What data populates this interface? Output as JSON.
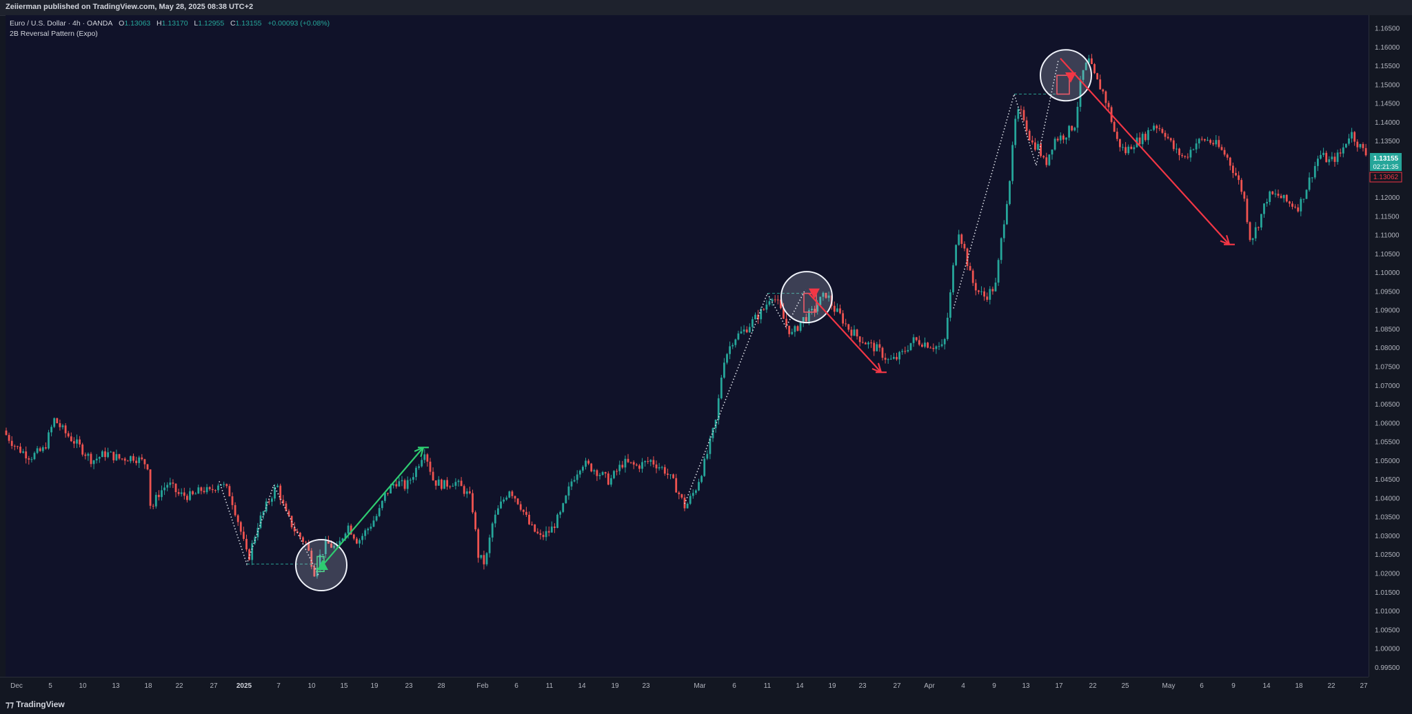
{
  "header": {
    "published": "Zeiierman published on TradingView.com, May 28, 2025 08:38 UTC+2"
  },
  "legend": {
    "symbol": "Euro / U.S. Dollar · 4h · OANDA",
    "o_label": "O",
    "o_val": "1.13063",
    "h_label": "H",
    "h_val": "1.13170",
    "l_label": "L",
    "l_val": "1.12955",
    "c_label": "C",
    "c_val": "1.13155",
    "change": "+0.00093 (+0.08%)",
    "indicator": "2B Reversal Pattern (Expo)"
  },
  "price_tag": {
    "price": "1.13155",
    "countdown": "02:21:35",
    "prev": "1.13062",
    "color_up": "#26a69a",
    "color_down": "#f23645"
  },
  "footer": {
    "brand": "TradingView"
  },
  "chart_data": {
    "type": "candlestick",
    "ylim": [
      0.9925,
      1.1685
    ],
    "yticks": [
      "1.16500",
      "1.16000",
      "1.15500",
      "1.15000",
      "1.14500",
      "1.14000",
      "1.13500",
      "1.13000",
      "1.12500",
      "1.12000",
      "1.11500",
      "1.11000",
      "1.10500",
      "1.10000",
      "1.09500",
      "1.09000",
      "1.08500",
      "1.08000",
      "1.07500",
      "1.07000",
      "1.06500",
      "1.06000",
      "1.05500",
      "1.05000",
      "1.04500",
      "1.04000",
      "1.03500",
      "1.03000",
      "1.02500",
      "1.02000",
      "1.01500",
      "1.01000",
      "1.00500",
      "1.00000",
      "0.99500"
    ],
    "xlim": [
      0,
      1977
    ],
    "xticks": [
      {
        "label": "Dec",
        "x": 16,
        "bold": false
      },
      {
        "label": "5",
        "x": 65,
        "bold": false
      },
      {
        "label": "10",
        "x": 112,
        "bold": false
      },
      {
        "label": "13",
        "x": 160,
        "bold": false
      },
      {
        "label": "18",
        "x": 207,
        "bold": false
      },
      {
        "label": "22",
        "x": 252,
        "bold": false
      },
      {
        "label": "27",
        "x": 302,
        "bold": false
      },
      {
        "label": "2025",
        "x": 346,
        "bold": true
      },
      {
        "label": "7",
        "x": 396,
        "bold": false
      },
      {
        "label": "10",
        "x": 444,
        "bold": false
      },
      {
        "label": "15",
        "x": 491,
        "bold": false
      },
      {
        "label": "19",
        "x": 535,
        "bold": false
      },
      {
        "label": "23",
        "x": 585,
        "bold": false
      },
      {
        "label": "28",
        "x": 632,
        "bold": false
      },
      {
        "label": "Feb",
        "x": 692,
        "bold": false
      },
      {
        "label": "6",
        "x": 741,
        "bold": false
      },
      {
        "label": "11",
        "x": 789,
        "bold": false
      },
      {
        "label": "14",
        "x": 836,
        "bold": false
      },
      {
        "label": "19",
        "x": 884,
        "bold": false
      },
      {
        "label": "23",
        "x": 929,
        "bold": false
      },
      {
        "label": "Mar",
        "x": 1007,
        "bold": false
      },
      {
        "label": "6",
        "x": 1057,
        "bold": false
      },
      {
        "label": "11",
        "x": 1105,
        "bold": false
      },
      {
        "label": "14",
        "x": 1152,
        "bold": false
      },
      {
        "label": "19",
        "x": 1199,
        "bold": false
      },
      {
        "label": "23",
        "x": 1243,
        "bold": false
      },
      {
        "label": "27",
        "x": 1293,
        "bold": false
      },
      {
        "label": "Apr",
        "x": 1340,
        "bold": false
      },
      {
        "label": "4",
        "x": 1389,
        "bold": false
      },
      {
        "label": "9",
        "x": 1434,
        "bold": false
      },
      {
        "label": "13",
        "x": 1480,
        "bold": false
      },
      {
        "label": "17",
        "x": 1528,
        "bold": false
      },
      {
        "label": "22",
        "x": 1577,
        "bold": false
      },
      {
        "label": "25",
        "x": 1624,
        "bold": false
      },
      {
        "label": "May",
        "x": 1687,
        "bold": false
      },
      {
        "label": "6",
        "x": 1735,
        "bold": false
      },
      {
        "label": "9",
        "x": 1781,
        "bold": false
      },
      {
        "label": "14",
        "x": 1829,
        "bold": false
      },
      {
        "label": "18",
        "x": 1876,
        "bold": false
      },
      {
        "label": "22",
        "x": 1923,
        "bold": false
      },
      {
        "label": "27",
        "x": 1970,
        "bold": false
      }
    ],
    "price_path": [
      [
        0,
        1.058
      ],
      [
        20,
        1.0535
      ],
      [
        40,
        1.051
      ],
      [
        60,
        1.053
      ],
      [
        75,
        1.061
      ],
      [
        90,
        1.0575
      ],
      [
        110,
        1.054
      ],
      [
        130,
        1.05
      ],
      [
        150,
        1.052
      ],
      [
        170,
        1.0505
      ],
      [
        190,
        1.051
      ],
      [
        210,
        1.049
      ],
      [
        215,
        1.0365
      ],
      [
        225,
        1.041
      ],
      [
        240,
        1.044
      ],
      [
        255,
        1.041
      ],
      [
        275,
        1.0405
      ],
      [
        290,
        1.0425
      ],
      [
        300,
        1.0415
      ],
      [
        315,
        1.0445
      ],
      [
        330,
        1.041
      ],
      [
        340,
        1.035
      ],
      [
        356,
        1.0235
      ],
      [
        370,
        1.033
      ],
      [
        385,
        1.039
      ],
      [
        398,
        1.0435
      ],
      [
        410,
        1.036
      ],
      [
        425,
        1.031
      ],
      [
        440,
        1.028
      ],
      [
        452,
        1.0205
      ],
      [
        460,
        1.0245
      ],
      [
        470,
        1.028
      ],
      [
        485,
        1.0265
      ],
      [
        500,
        1.033
      ],
      [
        515,
        1.0285
      ],
      [
        530,
        1.032
      ],
      [
        545,
        1.036
      ],
      [
        555,
        1.041
      ],
      [
        570,
        1.0445
      ],
      [
        585,
        1.043
      ],
      [
        600,
        1.048
      ],
      [
        612,
        1.053
      ],
      [
        625,
        1.0445
      ],
      [
        640,
        1.0435
      ],
      [
        655,
        1.0445
      ],
      [
        670,
        1.042
      ],
      [
        680,
        1.0395
      ],
      [
        690,
        1.0245
      ],
      [
        700,
        1.0225
      ],
      [
        710,
        1.033
      ],
      [
        720,
        1.0375
      ],
      [
        735,
        1.0425
      ],
      [
        750,
        1.0385
      ],
      [
        765,
        1.0325
      ],
      [
        780,
        1.0295
      ],
      [
        795,
        1.0315
      ],
      [
        810,
        1.036
      ],
      [
        825,
        1.0445
      ],
      [
        840,
        1.0495
      ],
      [
        860,
        1.0475
      ],
      [
        880,
        1.0445
      ],
      [
        900,
        1.0495
      ],
      [
        920,
        1.0485
      ],
      [
        940,
        1.05
      ],
      [
        960,
        1.0475
      ],
      [
        975,
        1.0435
      ],
      [
        990,
        1.0375
      ],
      [
        1005,
        1.0425
      ],
      [
        1020,
        1.0505
      ],
      [
        1035,
        1.061
      ],
      [
        1045,
        1.0765
      ],
      [
        1060,
        1.0825
      ],
      [
        1075,
        1.0845
      ],
      [
        1090,
        1.0875
      ],
      [
        1105,
        1.0905
      ],
      [
        1115,
        1.0945
      ],
      [
        1125,
        1.0915
      ],
      [
        1135,
        1.0865
      ],
      [
        1145,
        1.0835
      ],
      [
        1160,
        1.0875
      ],
      [
        1175,
        1.0895
      ],
      [
        1185,
        1.0925
      ],
      [
        1195,
        1.0945
      ],
      [
        1205,
        1.0905
      ],
      [
        1215,
        1.0885
      ],
      [
        1225,
        1.0855
      ],
      [
        1240,
        1.083
      ],
      [
        1255,
        1.081
      ],
      [
        1270,
        1.0795
      ],
      [
        1285,
        1.0765
      ],
      [
        1295,
        1.077
      ],
      [
        1305,
        1.0785
      ],
      [
        1320,
        1.082
      ],
      [
        1335,
        1.0815
      ],
      [
        1350,
        1.0805
      ],
      [
        1365,
        1.08
      ],
      [
        1375,
        1.095
      ],
      [
        1385,
        1.1125
      ],
      [
        1395,
        1.106
      ],
      [
        1405,
        1.098
      ],
      [
        1415,
        1.095
      ],
      [
        1425,
        1.0935
      ],
      [
        1440,
        1.0965
      ],
      [
        1450,
        1.111
      ],
      [
        1460,
        1.124
      ],
      [
        1470,
        1.1425
      ],
      [
        1480,
        1.142
      ],
      [
        1492,
        1.1345
      ],
      [
        1502,
        1.1335
      ],
      [
        1512,
        1.1285
      ],
      [
        1525,
        1.1355
      ],
      [
        1540,
        1.1365
      ],
      [
        1555,
        1.1395
      ],
      [
        1565,
        1.1525
      ],
      [
        1575,
        1.1565
      ],
      [
        1585,
        1.1515
      ],
      [
        1595,
        1.1485
      ],
      [
        1605,
        1.143
      ],
      [
        1615,
        1.1355
      ],
      [
        1628,
        1.132
      ],
      [
        1640,
        1.1345
      ],
      [
        1655,
        1.136
      ],
      [
        1670,
        1.1395
      ],
      [
        1685,
        1.1375
      ],
      [
        1700,
        1.1325
      ],
      [
        1715,
        1.1305
      ],
      [
        1730,
        1.1345
      ],
      [
        1745,
        1.1355
      ],
      [
        1760,
        1.134
      ],
      [
        1775,
        1.131
      ],
      [
        1790,
        1.1255
      ],
      [
        1800,
        1.1205
      ],
      [
        1810,
        1.1085
      ],
      [
        1822,
        1.1135
      ],
      [
        1835,
        1.1205
      ],
      [
        1850,
        1.1205
      ],
      [
        1865,
        1.1185
      ],
      [
        1880,
        1.1175
      ],
      [
        1895,
        1.1245
      ],
      [
        1910,
        1.1315
      ],
      [
        1925,
        1.1295
      ],
      [
        1940,
        1.1315
      ],
      [
        1955,
        1.1375
      ],
      [
        1965,
        1.1345
      ],
      [
        1977,
        1.1315
      ]
    ],
    "patterns": [
      {
        "kind": "bullish",
        "zigzag": [
          [
            310,
            1.0445
          ],
          [
            350,
            1.0225
          ],
          [
            389,
            1.0435
          ],
          [
            454,
            1.0195
          ]
        ],
        "level": 1.0225,
        "level_x": [
          350,
          454
        ],
        "box": [
          [
            452,
            1.0205
          ],
          [
            462,
            1.0245
          ]
        ],
        "circle": {
          "x": 458,
          "price": 1.0222
        },
        "marker": {
          "x": 460,
          "price": 1.0222
        },
        "arrow": {
          "from": [
            460,
            1.0222
          ],
          "to": [
            606,
            1.0535
          ]
        }
      },
      {
        "kind": "bearish",
        "zigzag": [
          [
            985,
            1.0385
          ],
          [
            1105,
            1.0945
          ],
          [
            1132,
            1.0855
          ],
          [
            1160,
            1.0955
          ]
        ],
        "level": 1.0945,
        "level_x": [
          1105,
          1160
        ],
        "box": [
          [
            1158,
            1.0945
          ],
          [
            1176,
            1.0895
          ]
        ],
        "circle": {
          "x": 1162,
          "price": 1.0935
        },
        "marker": {
          "x": 1173,
          "price": 1.0945
        },
        "arrow": {
          "from": [
            1165,
            1.0945
          ],
          "to": [
            1270,
            1.0735
          ]
        }
      },
      {
        "kind": "bearish",
        "zigzag": [
          [
            1375,
            1.0905
          ],
          [
            1463,
            1.1475
          ],
          [
            1495,
            1.1285
          ],
          [
            1527,
            1.1565
          ]
        ],
        "level": 1.1475,
        "level_x": [
          1463,
          1527
        ],
        "box": [
          [
            1525,
            1.1525
          ],
          [
            1543,
            1.1475
          ]
        ],
        "circle": {
          "x": 1538,
          "price": 1.1525
        },
        "marker": {
          "x": 1545,
          "price": 1.152
        },
        "arrow": {
          "from": [
            1530,
            1.157
          ],
          "to": [
            1775,
            1.1075
          ]
        }
      }
    ]
  }
}
